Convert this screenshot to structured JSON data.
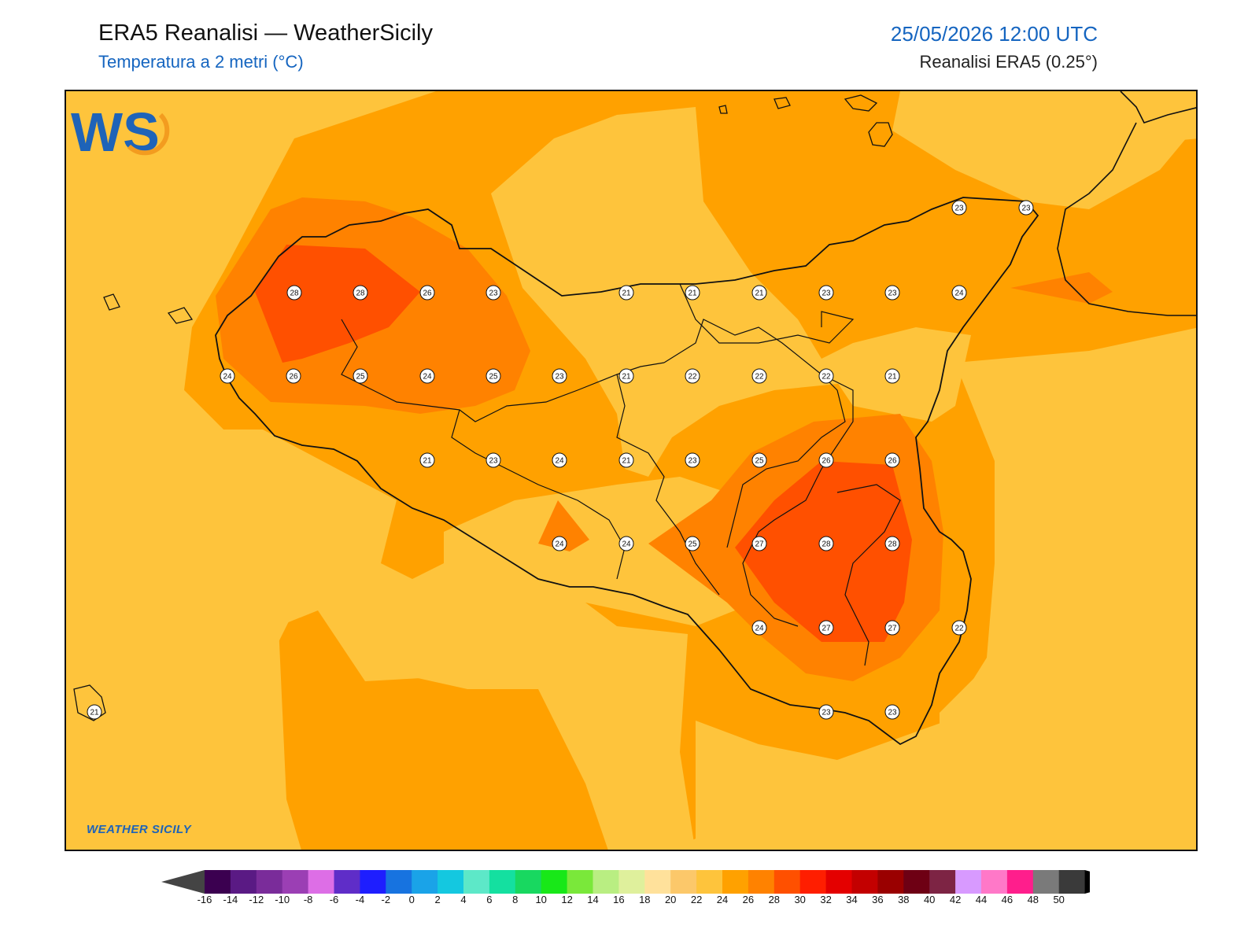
{
  "header": {
    "title": "ERA5 Reanalisi — WeatherSicily",
    "subtitle": "Temperatura a 2 metri (°C)",
    "datetime": "25/05/2026 12:00 UTC",
    "source": "Reanalisi ERA5 (0.25°)"
  },
  "logo": {
    "initials": "WS",
    "text": "WEATHER SICILY"
  },
  "colorbar": {
    "labels": [
      "-16",
      "-14",
      "-12",
      "-10",
      "-8",
      "-6",
      "-4",
      "-2",
      "0",
      "2",
      "4",
      "6",
      "8",
      "10",
      "12",
      "14",
      "16",
      "18",
      "20",
      "22",
      "24",
      "26",
      "28",
      "30",
      "32",
      "34",
      "36",
      "38",
      "40",
      "42",
      "44",
      "46",
      "48",
      "50"
    ],
    "colors": [
      "#3b0050",
      "#5a1a84",
      "#7a2c9a",
      "#9b3fb4",
      "#dd6ee6",
      "#5f2dc8",
      "#1e1eff",
      "#1773e0",
      "#1aa3e8",
      "#14c8e0",
      "#5de8c8",
      "#14e0a0",
      "#18d860",
      "#18e818",
      "#7ae83a",
      "#b9ee82",
      "#dff09c",
      "#ffe19b",
      "#fcc86a",
      "#fec43c",
      "#ffa100",
      "#ff8200",
      "#ff5000",
      "#ff1e00",
      "#e40000",
      "#c30000",
      "#9a0000",
      "#6e0014",
      "#7d2444",
      "#d89aff",
      "#ff78c8",
      "#ff1e8c",
      "#7a7a7a",
      "#3a3a3a"
    ]
  },
  "chart_data": {
    "type": "heatmap",
    "variable": "Temperatura a 2 metri (°C)",
    "stations": [
      {
        "value": 28
      },
      {
        "value": 28
      },
      {
        "value": 26
      },
      {
        "value": 23
      },
      {
        "value": 21
      },
      {
        "value": 21
      },
      {
        "value": 21
      },
      {
        "value": 23
      },
      {
        "value": 23
      },
      {
        "value": 24
      },
      {
        "value": 23
      },
      {
        "value": 23
      },
      {
        "value": 24
      },
      {
        "value": 26
      },
      {
        "value": 25
      },
      {
        "value": 24
      },
      {
        "value": 25
      },
      {
        "value": 23
      },
      {
        "value": 21
      },
      {
        "value": 22
      },
      {
        "value": 22
      },
      {
        "value": 22
      },
      {
        "value": 21
      },
      {
        "value": 21
      },
      {
        "value": 23
      },
      {
        "value": 24
      },
      {
        "value": 21
      },
      {
        "value": 23
      },
      {
        "value": 25
      },
      {
        "value": 26
      },
      {
        "value": 26
      },
      {
        "value": 24
      },
      {
        "value": 24
      },
      {
        "value": 25
      },
      {
        "value": 27
      },
      {
        "value": 28
      },
      {
        "value": 28
      },
      {
        "value": 24
      },
      {
        "value": 27
      },
      {
        "value": 27
      },
      {
        "value": 22
      },
      {
        "value": 23
      },
      {
        "value": 23
      },
      {
        "value": 21
      }
    ]
  }
}
